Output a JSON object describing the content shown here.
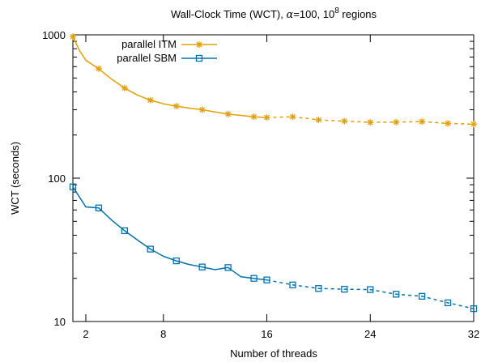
{
  "chart_data": {
    "type": "line",
    "title_prefix": "Wall-Clock Time (WCT), ",
    "title_alpha": "α",
    "title_mid": "=100, 10",
    "title_sup": "8",
    "title_suffix": " regions",
    "xlabel": "Number of threads",
    "ylabel": "WCT (seconds)",
    "xlim": [
      1,
      32
    ],
    "ylim": [
      10,
      1000
    ],
    "yscale": "log",
    "xticks": [
      2,
      8,
      16,
      24,
      32
    ],
    "xtick_labels": [
      "2",
      "8",
      "16",
      "24",
      "32"
    ],
    "yticks": [
      10,
      100,
      1000
    ],
    "ytick_labels": [
      "10",
      "100",
      "1000"
    ],
    "grid": false,
    "legend_position": "top-left",
    "series": [
      {
        "name": "parallel ITM",
        "color": "#e69f00",
        "marker": "star",
        "solid_until": 16,
        "x": [
          1,
          3,
          5,
          7,
          9,
          11,
          13,
          15,
          16,
          18,
          20,
          22,
          24,
          26,
          28,
          30,
          32
        ],
        "y": [
          970,
          580,
          425,
          350,
          318,
          300,
          280,
          268,
          265,
          268,
          255,
          250,
          245,
          246,
          248,
          241,
          238
        ],
        "marker_points": [
          1,
          3,
          5,
          7,
          9,
          11,
          13,
          15,
          16,
          18,
          20,
          22,
          24,
          26,
          28,
          30,
          32
        ],
        "curve_x": [
          1,
          1.5,
          2,
          2.5,
          3,
          4,
          5,
          6,
          7,
          8,
          9,
          10,
          11,
          12,
          13,
          14,
          15,
          16,
          18,
          20,
          22,
          24,
          26,
          28,
          30,
          32
        ],
        "curve_y": [
          970,
          780,
          665,
          620,
          580,
          490,
          425,
          380,
          350,
          330,
          318,
          308,
          300,
          290,
          280,
          274,
          268,
          265,
          268,
          255,
          250,
          245,
          246,
          248,
          241,
          238
        ]
      },
      {
        "name": "parallel SBM",
        "color": "#0072b2",
        "marker": "square",
        "solid_until": 16,
        "x": [
          1,
          3,
          5,
          7,
          9,
          11,
          13,
          15,
          16,
          18,
          20,
          22,
          24,
          26,
          28,
          30,
          32
        ],
        "y": [
          87,
          62,
          43,
          32,
          26.5,
          24,
          23.8,
          20,
          19.5,
          18,
          17,
          16.8,
          16.7,
          15.5,
          15,
          13.5,
          12.3
        ],
        "marker_points": [
          1,
          3,
          5,
          7,
          9,
          11,
          13,
          15,
          16,
          18,
          20,
          22,
          24,
          26,
          28,
          30,
          32
        ],
        "curve_x": [
          1,
          2,
          3,
          4,
          5,
          6,
          7,
          8,
          9,
          10,
          11,
          12,
          13,
          14,
          15,
          16,
          18,
          20,
          22,
          24,
          26,
          28,
          30,
          32
        ],
        "curve_y": [
          87,
          63,
          62,
          51,
          43,
          37,
          32,
          28.5,
          26.5,
          25,
          24,
          23,
          23.8,
          20.5,
          20,
          19.5,
          18,
          17,
          16.8,
          16.7,
          15.5,
          15,
          13.5,
          12.3
        ]
      }
    ]
  }
}
